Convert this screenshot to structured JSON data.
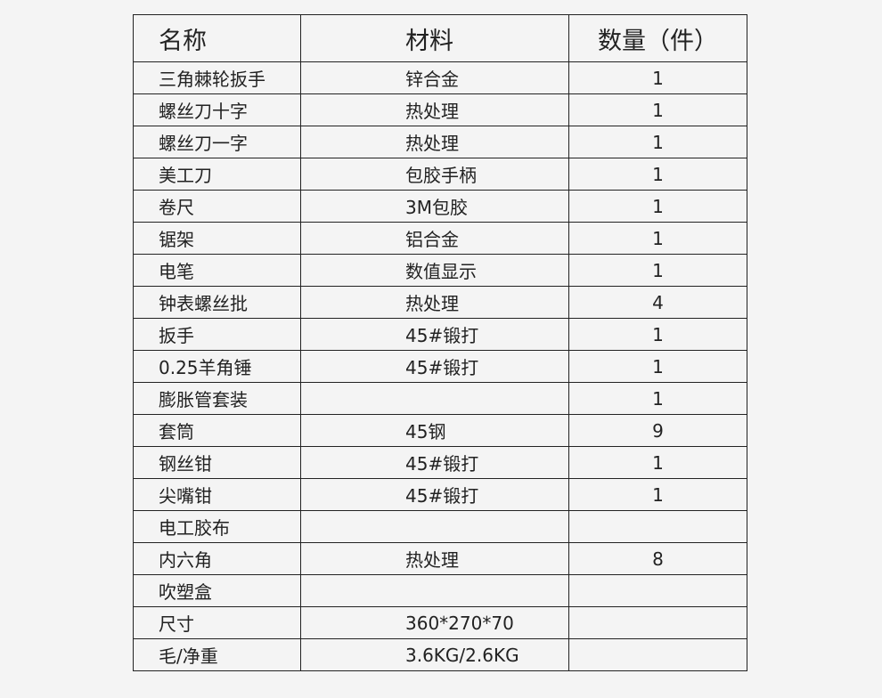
{
  "table": {
    "headers": [
      "名称",
      "材料",
      "数量（件）"
    ],
    "rows": [
      [
        "三角棘轮扳手",
        "锌合金",
        "1"
      ],
      [
        "螺丝刀十字",
        "热处理",
        "1"
      ],
      [
        "螺丝刀一字",
        "热处理",
        "1"
      ],
      [
        "美工刀",
        "包胶手柄",
        "1"
      ],
      [
        "卷尺",
        "3M包胶",
        "1"
      ],
      [
        "锯架",
        "铝合金",
        "1"
      ],
      [
        "电笔",
        "数值显示",
        "1"
      ],
      [
        "钟表螺丝批",
        "热处理",
        "4"
      ],
      [
        "扳手",
        "45#锻打",
        "1"
      ],
      [
        "0.25羊角锤",
        "45#锻打",
        "1"
      ],
      [
        "膨胀管套装",
        "",
        "1"
      ],
      [
        "套筒",
        "45钢",
        "9"
      ],
      [
        "钢丝钳",
        "45#锻打",
        "1"
      ],
      [
        "尖嘴钳",
        "45#锻打",
        "1"
      ],
      [
        "电工胶布",
        "",
        ""
      ],
      [
        "内六角",
        "热处理",
        "8"
      ],
      [
        "吹塑盒",
        "",
        ""
      ],
      [
        "尺寸",
        "360*270*70",
        ""
      ],
      [
        "毛/净重",
        "3.6KG/2.6KG",
        ""
      ]
    ]
  }
}
